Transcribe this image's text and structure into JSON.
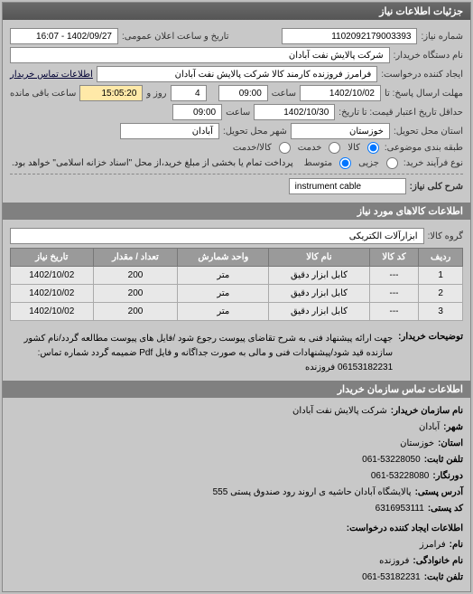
{
  "panels": {
    "main_title": "جزئیات اطلاعات نیاز",
    "items_title": "اطلاعات کالاهای مورد نیاز",
    "contact_title": "اطلاعات تماس سازمان خریدار"
  },
  "form": {
    "request_no_lbl": "شماره نیاز:",
    "request_no": "1102092179003393",
    "announce_dt_lbl": "تاریخ و ساعت اعلان عمومی:",
    "announce_dt": "1402/09/27 - 16:07",
    "buyer_name_lbl": "نام دستگاه خریدار:",
    "buyer_name": "شرکت پالایش نفت آبادان",
    "creator_lbl": "ایجاد کننده درخواست:",
    "creator": "فرامرز فروزنده کارمند کالا شرکت پالایش نفت آبادان",
    "buyer_contact_lbl": "اطلاعات تماس خریدار",
    "deadline_lbl": "مهلت ارسال پاسخ: تا",
    "deadline_date": "1402/10/02",
    "time_lbl": "ساعت",
    "deadline_time": "09:00",
    "remain_days": "4",
    "remain_days_lbl": "روز و",
    "remain_time": "15:05:20",
    "remain_time_lbl": "ساعت باقی مانده",
    "validity_lbl": "حداقل تاریخ اعتبار قیمت: تا تاریخ:",
    "validity_date": "1402/10/30",
    "validity_time": "09:00",
    "province_lbl": "استان محل تحویل:",
    "province": "خوزستان",
    "city_lbl": "شهر محل تحویل:",
    "city": "آبادان",
    "subject_class_lbl": "طبقه بندی موضوعی:",
    "radio_goods": "کالا",
    "radio_service": "خدمت",
    "radio_goods_service": "کالا/خدمت",
    "process_type_lbl": "نوع فرآیند خرید:",
    "radio_small": "جزیی",
    "radio_medium": "متوسط",
    "process_note": "پرداخت تمام یا بخشی از مبلغ خرید،از محل \"اسناد خزانه اسلامی\" خواهد بود.",
    "general_desc_lbl": "شرح کلی نیاز:",
    "general_desc": "instrument cable"
  },
  "items": {
    "group_lbl": "گروه کالا:",
    "group": "ابزارآلات الکتریکی",
    "headers": {
      "row": "ردیف",
      "code": "کد کالا",
      "name": "نام کالا",
      "unit": "واحد شمارش",
      "qty": "تعداد / مقدار",
      "date": "تاریخ نیاز"
    },
    "rows": [
      {
        "row": "1",
        "code": "---",
        "name": "کابل ابزار دقیق",
        "unit": "متر",
        "qty": "200",
        "date": "1402/10/02"
      },
      {
        "row": "2",
        "code": "---",
        "name": "کابل ابزار دقیق",
        "unit": "متر",
        "qty": "200",
        "date": "1402/10/02"
      },
      {
        "row": "3",
        "code": "---",
        "name": "کابل ابزار دقیق",
        "unit": "متر",
        "qty": "200",
        "date": "1402/10/02"
      }
    ]
  },
  "buyer_desc": {
    "lbl": "توضیحات خریدار:",
    "text": "جهت ارائه پیشنهاد فنی به شرح تقاضای پیوست رجوع شود /فایل های پیوست مطالعه گردد/نام کشور سازنده قید شود/پیشنهادات فنی و مالی به صورت جداگانه و فایل Pdf ضمیمه گردد شماره تماس: 06153182231 فروزنده"
  },
  "contact": {
    "org_lbl": "نام سازمان خریدار:",
    "org": "شرکت پالایش نفت آبادان",
    "city_lbl": "شهر:",
    "city": "آبادان",
    "province_lbl": "استان:",
    "province": "خوزستان",
    "phone_lbl": "تلفن ثابت:",
    "phone": "061-53228050",
    "fax_lbl": "دورنگار:",
    "fax": "061-53228080",
    "address_lbl": "آدرس پستی:",
    "address": "پالایشگاه آبادان حاشیه ی اروند رود صندوق پستی 555",
    "post_lbl": "کد پستی:",
    "post": "6316953111",
    "creator_section": "اطلاعات ایجاد کننده درخواست:",
    "name_lbl": "نام:",
    "name": "فرامرز",
    "family_lbl": "نام خانوادگی:",
    "family": "فروزنده",
    "tel_lbl": "تلفن ثابت:",
    "tel": "061-53182231"
  }
}
